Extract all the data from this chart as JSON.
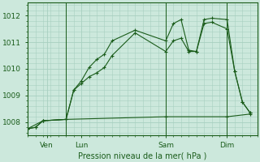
{
  "background_color": "#cce8dc",
  "grid_color": "#a8cfc0",
  "line_color": "#1a5c1a",
  "title": "Pression niveau de la mer( hPa )",
  "ylabel_vals": [
    1008,
    1009,
    1010,
    1011,
    1012
  ],
  "xlim": [
    0,
    30
  ],
  "ylim": [
    1007.5,
    1012.5
  ],
  "xtick_positions": [
    2.5,
    7,
    18,
    26
  ],
  "xtick_labels": [
    "Ven",
    "Lun",
    "Sam",
    "Dim"
  ],
  "vline_positions": [
    5,
    18,
    26
  ],
  "line1_x": [
    0,
    1,
    2,
    5,
    6,
    7,
    8,
    9,
    10,
    11,
    14,
    18,
    19,
    20,
    21,
    22,
    23,
    24,
    26,
    27,
    28,
    29
  ],
  "line1_y": [
    1007.75,
    1007.8,
    1008.05,
    1008.1,
    1009.2,
    1009.55,
    1010.05,
    1010.35,
    1010.55,
    1011.05,
    1011.45,
    1011.05,
    1011.7,
    1011.85,
    1010.7,
    1010.65,
    1011.85,
    1011.9,
    1011.85,
    1009.9,
    1008.75,
    1008.35
  ],
  "line2_x": [
    0,
    1,
    2,
    5,
    6,
    7,
    8,
    9,
    10,
    11,
    14,
    18,
    19,
    20,
    21,
    22,
    23,
    24,
    26,
    27,
    28,
    29
  ],
  "line2_y": [
    1007.75,
    1007.8,
    1008.05,
    1008.1,
    1009.2,
    1009.45,
    1009.7,
    1009.85,
    1010.05,
    1010.5,
    1011.35,
    1010.65,
    1011.05,
    1011.15,
    1010.65,
    1010.65,
    1011.7,
    1011.75,
    1011.5,
    1009.9,
    1008.75,
    1008.35
  ],
  "line3_x": [
    0,
    2,
    5,
    18,
    26,
    29
  ],
  "line3_y": [
    1007.75,
    1008.05,
    1008.1,
    1008.2,
    1008.2,
    1008.3
  ]
}
